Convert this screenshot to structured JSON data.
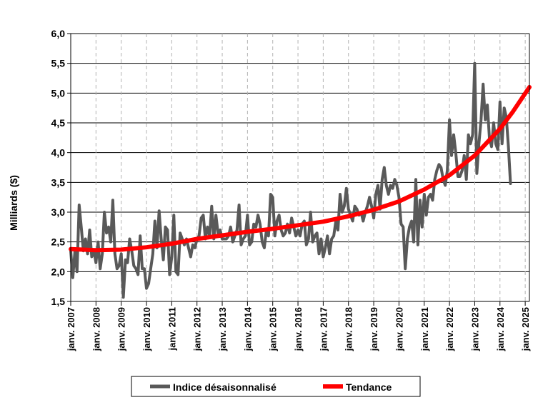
{
  "chart_data": {
    "type": "line",
    "title": "",
    "ylabel": "Milliards ($)",
    "xlabel": "",
    "ylim": [
      1.5,
      6.0
    ],
    "y_ticks": [
      "1,5",
      "2,0",
      "2,5",
      "3,0",
      "3,5",
      "4,0",
      "4,5",
      "5,0",
      "5,5",
      "6,0"
    ],
    "x_range": [
      "2007-01",
      "2025-03"
    ],
    "x_ticks": [
      "janv. 2007",
      "janv. 2008",
      "janv. 2009",
      "janv. 2010",
      "janv. 2011",
      "janv. 2012",
      "janv. 2013",
      "janv. 2014",
      "janv. 2015",
      "janv. 2016",
      "janv. 2017",
      "janv. 2018",
      "janv. 2019",
      "janv. 2020",
      "janv. 2021",
      "janv. 2022",
      "janv. 2023",
      "janv. 2024",
      "janv. 2025"
    ],
    "grid": {
      "horizontal": "solid",
      "vertical": "dashed"
    },
    "legend_position": "bottom",
    "series": [
      {
        "name": "Indice désaisonnalisé",
        "color": "#595959",
        "x": [
          "2007-01",
          "2007-02",
          "2007-03",
          "2007-04",
          "2007-05",
          "2007-06",
          "2007-07",
          "2007-08",
          "2007-09",
          "2007-10",
          "2007-11",
          "2007-12",
          "2008-01",
          "2008-02",
          "2008-03",
          "2008-04",
          "2008-05",
          "2008-06",
          "2008-07",
          "2008-08",
          "2008-09",
          "2008-10",
          "2008-11",
          "2008-12",
          "2009-01",
          "2009-02",
          "2009-03",
          "2009-04",
          "2009-05",
          "2009-06",
          "2009-07",
          "2009-08",
          "2009-09",
          "2009-10",
          "2009-11",
          "2009-12",
          "2010-01",
          "2010-02",
          "2010-03",
          "2010-04",
          "2010-05",
          "2010-06",
          "2010-07",
          "2010-08",
          "2010-09",
          "2010-10",
          "2010-11",
          "2010-12",
          "2011-01",
          "2011-02",
          "2011-03",
          "2011-04",
          "2011-05",
          "2011-06",
          "2011-07",
          "2011-08",
          "2011-09",
          "2011-10",
          "2011-11",
          "2011-12",
          "2012-01",
          "2012-02",
          "2012-03",
          "2012-04",
          "2012-05",
          "2012-06",
          "2012-07",
          "2012-08",
          "2012-09",
          "2012-10",
          "2012-11",
          "2012-12",
          "2013-01",
          "2013-02",
          "2013-03",
          "2013-04",
          "2013-05",
          "2013-06",
          "2013-07",
          "2013-08",
          "2013-09",
          "2013-10",
          "2013-11",
          "2013-12",
          "2014-01",
          "2014-02",
          "2014-03",
          "2014-04",
          "2014-05",
          "2014-06",
          "2014-07",
          "2014-08",
          "2014-09",
          "2014-10",
          "2014-11",
          "2014-12",
          "2015-01",
          "2015-02",
          "2015-03",
          "2015-04",
          "2015-05",
          "2015-06",
          "2015-07",
          "2015-08",
          "2015-09",
          "2015-10",
          "2015-11",
          "2015-12",
          "2016-01",
          "2016-02",
          "2016-03",
          "2016-04",
          "2016-05",
          "2016-06",
          "2016-07",
          "2016-08",
          "2016-09",
          "2016-10",
          "2016-11",
          "2016-12",
          "2017-01",
          "2017-02",
          "2017-03",
          "2017-04",
          "2017-05",
          "2017-06",
          "2017-07",
          "2017-08",
          "2017-09",
          "2017-10",
          "2017-11",
          "2017-12",
          "2018-01",
          "2018-02",
          "2018-03",
          "2018-04",
          "2018-05",
          "2018-06",
          "2018-07",
          "2018-08",
          "2018-09",
          "2018-10",
          "2018-11",
          "2018-12",
          "2019-01",
          "2019-02",
          "2019-03",
          "2019-04",
          "2019-05",
          "2019-06",
          "2019-07",
          "2019-08",
          "2019-09",
          "2019-10",
          "2019-11",
          "2019-12",
          "2020-01",
          "2020-02",
          "2020-03",
          "2020-04",
          "2020-05",
          "2020-06",
          "2020-07",
          "2020-08",
          "2020-09",
          "2020-10",
          "2020-11",
          "2020-12",
          "2021-01",
          "2021-02",
          "2021-03",
          "2021-04",
          "2021-05",
          "2021-06",
          "2021-07",
          "2021-08",
          "2021-09",
          "2021-10",
          "2021-11",
          "2021-12",
          "2022-01",
          "2022-02",
          "2022-03",
          "2022-04",
          "2022-05",
          "2022-06",
          "2022-07",
          "2022-08",
          "2022-09",
          "2022-10",
          "2022-11",
          "2022-12",
          "2023-01",
          "2023-02",
          "2023-03",
          "2023-04",
          "2023-05",
          "2023-06",
          "2023-07",
          "2023-08",
          "2023-09",
          "2023-10",
          "2023-11",
          "2023-12",
          "2024-01",
          "2024-02",
          "2024-03",
          "2024-04",
          "2024-05",
          "2024-06"
        ],
        "values": [
          2.35,
          1.9,
          2.35,
          2.0,
          3.12,
          2.75,
          2.35,
          2.55,
          2.3,
          2.7,
          2.25,
          2.35,
          2.15,
          2.5,
          2.05,
          2.3,
          3.0,
          2.65,
          2.75,
          2.5,
          3.2,
          2.3,
          2.05,
          2.1,
          2.3,
          1.57,
          2.2,
          2.15,
          2.55,
          2.35,
          2.1,
          2.05,
          1.95,
          2.6,
          2.05,
          2.05,
          1.72,
          1.8,
          2.05,
          2.3,
          2.85,
          2.4,
          3.02,
          2.55,
          2.2,
          2.75,
          2.7,
          1.95,
          2.25,
          2.95,
          2.0,
          1.95,
          2.65,
          2.55,
          2.45,
          2.55,
          2.4,
          2.25,
          2.45,
          2.4,
          2.55,
          2.6,
          2.9,
          2.95,
          2.55,
          2.75,
          2.6,
          3.1,
          2.55,
          2.95,
          2.65,
          2.7,
          2.55,
          2.55,
          2.55,
          2.6,
          2.75,
          2.5,
          2.6,
          2.7,
          3.12,
          2.45,
          2.55,
          2.6,
          2.95,
          2.45,
          2.5,
          2.8,
          2.75,
          2.95,
          2.8,
          2.5,
          2.4,
          2.7,
          2.6,
          3.3,
          3.25,
          2.6,
          2.85,
          2.95,
          2.7,
          2.6,
          2.65,
          2.8,
          2.65,
          2.9,
          2.75,
          2.6,
          2.7,
          2.6,
          2.8,
          2.85,
          2.45,
          2.55,
          3.0,
          2.5,
          2.6,
          2.65,
          2.3,
          2.55,
          2.25,
          2.4,
          2.6,
          2.3,
          2.55,
          2.6,
          2.85,
          2.7,
          3.3,
          3.0,
          3.1,
          3.4,
          3.05,
          2.95,
          2.85,
          3.1,
          3.05,
          2.95,
          3.0,
          2.85,
          3.0,
          3.1,
          3.25,
          3.1,
          2.9,
          3.3,
          3.45,
          3.05,
          3.55,
          3.75,
          3.45,
          3.3,
          3.45,
          3.4,
          3.55,
          3.45,
          3.25,
          2.8,
          2.75,
          2.05,
          2.55,
          2.75,
          2.85,
          2.5,
          3.55,
          2.45,
          3.2,
          2.75,
          3.3,
          2.95,
          3.25,
          3.3,
          3.2,
          3.55,
          3.7,
          3.8,
          3.75,
          3.55,
          3.45,
          3.7,
          4.55,
          3.95,
          4.3,
          4.0,
          3.6,
          3.6,
          3.7,
          3.95,
          3.55,
          4.3,
          4.15,
          4.3,
          5.5,
          3.65,
          4.15,
          4.55,
          5.15,
          4.55,
          4.8,
          4.25,
          4.1,
          4.5,
          4.15,
          4.05,
          4.85,
          4.15,
          4.75,
          4.6,
          4.1,
          3.48
        ]
      },
      {
        "name": "Tendance",
        "color": "#ff0000",
        "x": [
          "2007-01",
          "2008-01",
          "2009-01",
          "2010-01",
          "2011-01",
          "2012-01",
          "2013-01",
          "2014-01",
          "2015-01",
          "2016-01",
          "2017-01",
          "2018-01",
          "2019-01",
          "2020-01",
          "2021-01",
          "2022-01",
          "2023-01",
          "2024-01",
          "2024-07",
          "2025-03"
        ],
        "values": [
          2.38,
          2.36,
          2.37,
          2.41,
          2.47,
          2.55,
          2.61,
          2.67,
          2.72,
          2.78,
          2.84,
          2.93,
          3.04,
          3.18,
          3.38,
          3.62,
          3.95,
          4.4,
          4.68,
          5.1
        ]
      }
    ]
  }
}
